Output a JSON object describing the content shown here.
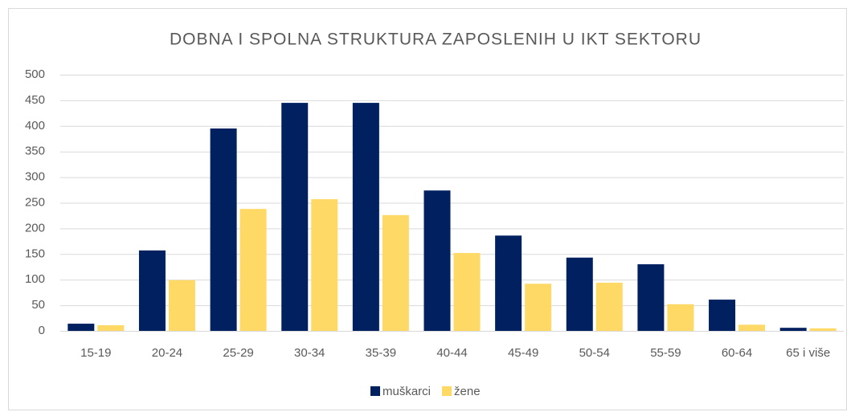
{
  "chart_data": {
    "type": "bar",
    "title": "DOBNA I SPOLNA STRUKTURA ZAPOSLENIH U IKT SEKTORU",
    "categories": [
      "15-19",
      "20-24",
      "25-29",
      "30-34",
      "35-39",
      "40-44",
      "45-49",
      "50-54",
      "55-59",
      "60-64",
      "65 i više"
    ],
    "series": [
      {
        "name": "muškarci",
        "color": "#002060",
        "values": [
          14,
          157,
          395,
          445,
          445,
          274,
          186,
          143,
          130,
          61,
          6
        ]
      },
      {
        "name": "žene",
        "color": "#ffd966",
        "values": [
          11,
          99,
          238,
          257,
          226,
          152,
          92,
          94,
          52,
          12,
          5
        ]
      }
    ],
    "ylim": [
      0,
      500
    ],
    "yticks": [
      0,
      50,
      100,
      150,
      200,
      250,
      300,
      350,
      400,
      450,
      500
    ],
    "grid": true,
    "legend": "bottom"
  }
}
